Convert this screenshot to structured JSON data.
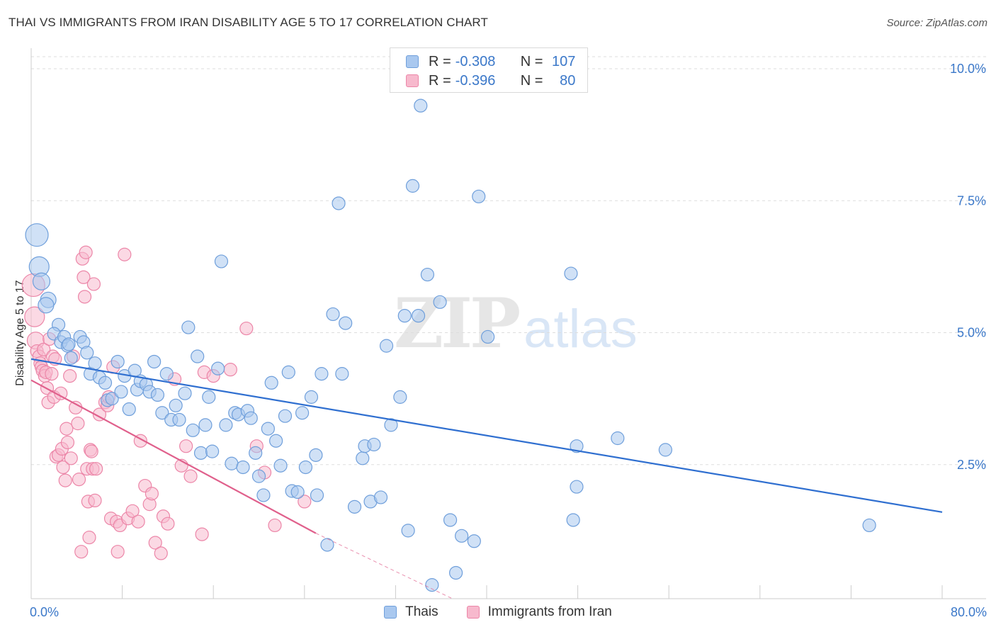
{
  "title": "THAI VS IMMIGRANTS FROM IRAN DISABILITY AGE 5 TO 17 CORRELATION CHART",
  "source": "Source: ZipAtlas.com",
  "watermark": {
    "zip": "ZIP",
    "atlas": "atlas"
  },
  "legend_top": {
    "rows": [
      {
        "r_label": "R =",
        "r_value": "-0.308",
        "n_label": "N =",
        "n_value": "107"
      },
      {
        "r_label": "R =",
        "r_value": "-0.396",
        "n_label": "N =",
        "n_value": "80"
      }
    ]
  },
  "legend_bottom": {
    "series": [
      "Thais",
      "Immigrants from Iran"
    ]
  },
  "colors": {
    "thais_fill": "#a9c8ef",
    "thais_stroke": "#6f9fdb",
    "thais_line": "#2f6fd0",
    "iran_fill": "#f7b9cd",
    "iran_stroke": "#ec86a8",
    "iran_line": "#e0608c",
    "tick_text": "#3b78c9",
    "grid": "#dddddd",
    "axis": "#cccccc"
  },
  "chart_data": {
    "type": "scatter",
    "title": "THAI VS IMMIGRANTS FROM IRAN DISABILITY AGE 5 TO 17 CORRELATION CHART",
    "xlabel": "",
    "ylabel": "Disability Age 5 to 17",
    "xlim": [
      0,
      80
    ],
    "ylim": [
      0,
      10.3
    ],
    "x_tick_labels": [
      "0.0%",
      "80.0%"
    ],
    "y_ticks": [
      2.5,
      5.0,
      7.5,
      10.0
    ],
    "y_tick_labels": [
      "2.5%",
      "5.0%",
      "7.5%",
      "10.0%"
    ],
    "grid": "horizontal dashed",
    "legend_position": "top-center",
    "series": [
      {
        "name": "Thais",
        "r": -0.308,
        "n": 107,
        "trend": {
          "x": [
            0,
            80
          ],
          "y": [
            4.5,
            1.6
          ]
        },
        "points": [
          [
            0.5,
            6.85
          ],
          [
            0.7,
            6.25
          ],
          [
            0.9,
            5.97
          ],
          [
            1.5,
            5.62
          ],
          [
            1.3,
            5.52
          ],
          [
            2.4,
            5.15
          ],
          [
            2.0,
            4.98
          ],
          [
            2.6,
            4.82
          ],
          [
            2.9,
            4.92
          ],
          [
            3.2,
            4.75
          ],
          [
            3.3,
            4.78
          ],
          [
            3.5,
            4.52
          ],
          [
            4.3,
            4.92
          ],
          [
            4.6,
            4.82
          ],
          [
            4.9,
            4.62
          ],
          [
            5.2,
            4.22
          ],
          [
            5.6,
            4.42
          ],
          [
            6.0,
            4.15
          ],
          [
            6.5,
            4.05
          ],
          [
            6.7,
            3.72
          ],
          [
            7.1,
            3.75
          ],
          [
            7.6,
            4.45
          ],
          [
            7.9,
            3.88
          ],
          [
            8.2,
            4.18
          ],
          [
            8.6,
            3.55
          ],
          [
            9.1,
            4.28
          ],
          [
            9.3,
            3.92
          ],
          [
            9.6,
            4.08
          ],
          [
            10.1,
            4.02
          ],
          [
            10.4,
            3.88
          ],
          [
            10.8,
            4.45
          ],
          [
            11.1,
            3.82
          ],
          [
            11.5,
            3.48
          ],
          [
            11.9,
            4.22
          ],
          [
            12.3,
            3.35
          ],
          [
            12.7,
            3.62
          ],
          [
            13.0,
            3.35
          ],
          [
            13.5,
            3.85
          ],
          [
            13.8,
            5.1
          ],
          [
            14.2,
            3.15
          ],
          [
            14.6,
            4.55
          ],
          [
            14.9,
            2.72
          ],
          [
            15.3,
            3.25
          ],
          [
            15.6,
            3.78
          ],
          [
            15.9,
            2.75
          ],
          [
            16.4,
            4.32
          ],
          [
            16.7,
            6.35
          ],
          [
            17.1,
            3.25
          ],
          [
            17.6,
            2.52
          ],
          [
            17.9,
            3.48
          ],
          [
            18.2,
            3.45
          ],
          [
            18.6,
            2.45
          ],
          [
            19.0,
            3.52
          ],
          [
            19.3,
            3.38
          ],
          [
            19.7,
            2.72
          ],
          [
            20.0,
            2.28
          ],
          [
            20.4,
            1.92
          ],
          [
            20.8,
            3.18
          ],
          [
            21.1,
            4.05
          ],
          [
            21.5,
            2.95
          ],
          [
            21.9,
            2.48
          ],
          [
            22.3,
            3.42
          ],
          [
            22.6,
            4.25
          ],
          [
            22.9,
            2.0
          ],
          [
            23.4,
            1.98
          ],
          [
            23.8,
            3.48
          ],
          [
            24.1,
            2.45
          ],
          [
            24.6,
            3.78
          ],
          [
            25.0,
            2.68
          ],
          [
            25.1,
            1.92
          ],
          [
            25.5,
            4.22
          ],
          [
            26.0,
            0.98
          ],
          [
            26.5,
            5.35
          ],
          [
            27.0,
            7.45
          ],
          [
            27.3,
            4.22
          ],
          [
            27.6,
            5.18
          ],
          [
            28.4,
            1.7
          ],
          [
            29.1,
            2.62
          ],
          [
            29.3,
            2.85
          ],
          [
            29.8,
            1.8
          ],
          [
            30.1,
            2.88
          ],
          [
            30.7,
            1.88
          ],
          [
            31.2,
            4.75
          ],
          [
            31.6,
            3.25
          ],
          [
            32.4,
            3.78
          ],
          [
            32.8,
            5.32
          ],
          [
            33.1,
            1.25
          ],
          [
            33.5,
            7.78
          ],
          [
            34.0,
            5.32
          ],
          [
            34.2,
            9.3
          ],
          [
            34.8,
            6.1
          ],
          [
            35.2,
            0.22
          ],
          [
            35.9,
            5.58
          ],
          [
            36.8,
            1.45
          ],
          [
            37.3,
            0.45
          ],
          [
            37.8,
            1.15
          ],
          [
            38.9,
            1.05
          ],
          [
            39.3,
            7.58
          ],
          [
            40.1,
            4.92
          ],
          [
            47.4,
            6.12
          ],
          [
            47.6,
            1.45
          ],
          [
            47.9,
            2.08
          ],
          [
            47.9,
            2.85
          ],
          [
            51.5,
            3.0
          ],
          [
            55.7,
            2.78
          ],
          [
            73.6,
            1.35
          ]
        ]
      },
      {
        "name": "Immigrants from Iran",
        "r": -0.396,
        "n": 80,
        "trend": {
          "x": [
            0,
            25
          ],
          "y": [
            4.1,
            1.2
          ]
        },
        "trend_dashed": {
          "x": [
            25,
            37
          ],
          "y": [
            1.2,
            -0.2
          ]
        },
        "points": [
          [
            0.2,
            5.9
          ],
          [
            0.3,
            5.3
          ],
          [
            0.4,
            4.85
          ],
          [
            0.5,
            4.65
          ],
          [
            0.7,
            4.55
          ],
          [
            0.8,
            4.42
          ],
          [
            0.9,
            4.35
          ],
          [
            1.0,
            4.28
          ],
          [
            1.1,
            4.68
          ],
          [
            1.2,
            4.18
          ],
          [
            1.3,
            4.25
          ],
          [
            1.4,
            3.95
          ],
          [
            1.5,
            3.68
          ],
          [
            1.6,
            4.88
          ],
          [
            1.8,
            4.22
          ],
          [
            1.9,
            4.55
          ],
          [
            2.0,
            3.78
          ],
          [
            2.1,
            4.5
          ],
          [
            2.2,
            2.65
          ],
          [
            2.4,
            2.68
          ],
          [
            2.6,
            3.85
          ],
          [
            2.7,
            2.8
          ],
          [
            2.8,
            2.45
          ],
          [
            3.0,
            2.2
          ],
          [
            3.1,
            3.18
          ],
          [
            3.2,
            2.92
          ],
          [
            3.4,
            4.18
          ],
          [
            3.5,
            2.62
          ],
          [
            3.7,
            4.55
          ],
          [
            3.9,
            3.58
          ],
          [
            4.1,
            3.28
          ],
          [
            4.2,
            2.22
          ],
          [
            4.4,
            0.85
          ],
          [
            4.5,
            6.4
          ],
          [
            4.6,
            6.05
          ],
          [
            4.7,
            5.68
          ],
          [
            4.8,
            6.52
          ],
          [
            4.9,
            2.42
          ],
          [
            5.0,
            1.8
          ],
          [
            5.1,
            1.12
          ],
          [
            5.2,
            2.78
          ],
          [
            5.3,
            2.75
          ],
          [
            5.4,
            2.42
          ],
          [
            5.5,
            5.92
          ],
          [
            5.6,
            1.82
          ],
          [
            5.7,
            2.42
          ],
          [
            6.0,
            3.45
          ],
          [
            6.5,
            3.68
          ],
          [
            6.7,
            3.62
          ],
          [
            6.8,
            3.78
          ],
          [
            7.0,
            1.48
          ],
          [
            7.2,
            4.35
          ],
          [
            7.5,
            1.42
          ],
          [
            7.6,
            0.85
          ],
          [
            7.8,
            1.35
          ],
          [
            8.2,
            6.48
          ],
          [
            8.5,
            1.48
          ],
          [
            8.9,
            1.62
          ],
          [
            9.4,
            1.42
          ],
          [
            9.6,
            2.95
          ],
          [
            10.0,
            2.1
          ],
          [
            10.4,
            1.75
          ],
          [
            10.6,
            1.95
          ],
          [
            10.9,
            1.02
          ],
          [
            11.4,
            0.82
          ],
          [
            11.6,
            1.52
          ],
          [
            12.0,
            1.38
          ],
          [
            12.6,
            4.12
          ],
          [
            13.2,
            2.48
          ],
          [
            13.6,
            2.85
          ],
          [
            14.0,
            2.28
          ],
          [
            15.0,
            1.18
          ],
          [
            15.2,
            4.25
          ],
          [
            16.0,
            4.18
          ],
          [
            17.5,
            4.3
          ],
          [
            18.9,
            5.08
          ],
          [
            19.8,
            2.85
          ],
          [
            20.5,
            2.35
          ],
          [
            21.4,
            1.35
          ],
          [
            24.0,
            1.8
          ]
        ]
      }
    ],
    "bubble_large": {
      "Thais": [
        [
          0.5,
          6.85
        ],
        [
          0.7,
          6.25
        ],
        [
          0.9,
          5.97
        ],
        [
          1.5,
          5.62
        ],
        [
          1.3,
          5.52
        ]
      ],
      "Immigrants from Iran": [
        [
          0.2,
          5.9
        ],
        [
          0.3,
          5.3
        ],
        [
          0.4,
          4.85
        ]
      ]
    }
  }
}
